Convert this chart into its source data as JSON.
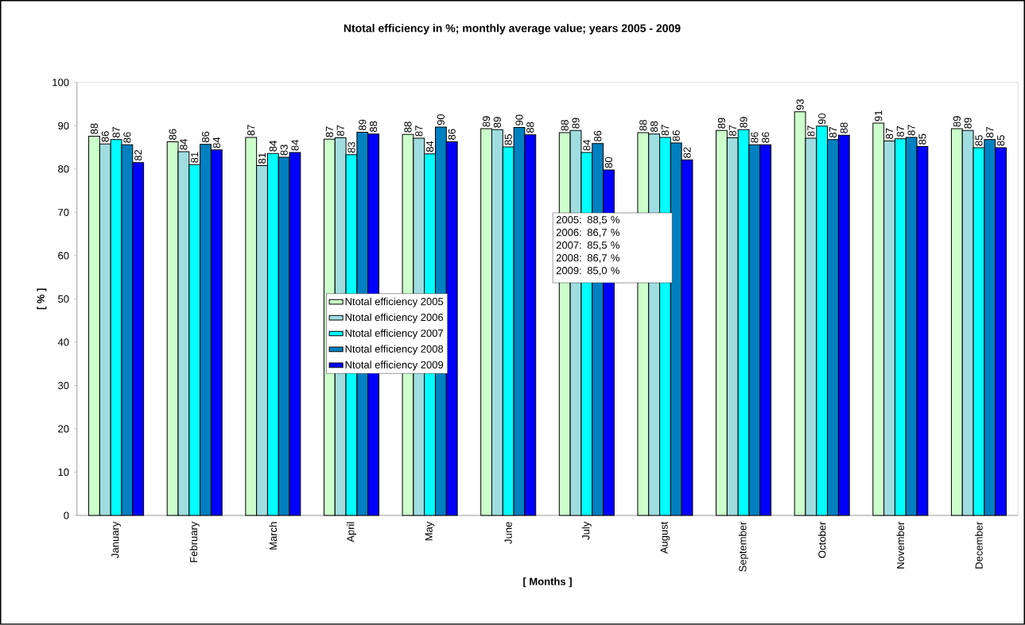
{
  "chart_data": {
    "type": "bar",
    "title": "Ntotal efficiency in %; monthly average value; years 2005 - 2009",
    "xlabel": "[ Months ]",
    "ylabel": "[ % ]",
    "categories": [
      "January",
      "February",
      "March",
      "April",
      "May",
      "June",
      "July",
      "August",
      "September",
      "October",
      "November",
      "December"
    ],
    "ylim": [
      0,
      100
    ],
    "yticks": [
      0,
      10,
      20,
      30,
      40,
      50,
      60,
      70,
      80,
      90,
      100
    ],
    "legend": "center",
    "series": [
      {
        "name": "Ntotal efficiency 2005",
        "color": "#ccffcc",
        "values": [
          87.6,
          86.3,
          87.3,
          86.9,
          88.0,
          89.3,
          88.4,
          88.4,
          88.9,
          93.2,
          90.6,
          89.3
        ],
        "value_labels": [
          "88",
          "86",
          "87",
          "87",
          "88",
          "89",
          "88",
          "88",
          "89",
          "93",
          "91",
          "89"
        ]
      },
      {
        "name": "Ntotal efficiency 2006",
        "color": "#a0dde0",
        "values": [
          85.8,
          84.0,
          80.8,
          87.2,
          87.1,
          89.1,
          88.9,
          88.1,
          87.2,
          87.1,
          86.5,
          88.9
        ],
        "value_labels": [
          "86",
          "84",
          "81",
          "87",
          "87",
          "89",
          "89",
          "88",
          "87",
          "87",
          "87",
          "89"
        ]
      },
      {
        "name": "Ntotal efficiency 2007",
        "color": "#00ffff",
        "values": [
          86.8,
          81.0,
          83.6,
          83.3,
          83.5,
          85.1,
          83.8,
          87.3,
          89.1,
          89.9,
          87.0,
          84.9
        ],
        "value_labels": [
          "87",
          "81",
          "84",
          "83",
          "84",
          "85",
          "84",
          "87",
          "89",
          "90",
          "87",
          "85"
        ]
      },
      {
        "name": "Ntotal efficiency 2008",
        "color": "#0080c0",
        "values": [
          85.6,
          85.7,
          82.7,
          88.5,
          89.7,
          89.6,
          85.9,
          86.0,
          85.6,
          86.8,
          87.3,
          86.8
        ],
        "value_labels": [
          "86",
          "86",
          "83",
          "89",
          "90",
          "90",
          "86",
          "86",
          "86",
          "87",
          "87",
          "87"
        ]
      },
      {
        "name": "Ntotal efficiency 2009",
        "color": "#0000ff",
        "values": [
          81.5,
          84.4,
          83.8,
          88.1,
          86.3,
          87.9,
          79.8,
          82.1,
          85.6,
          87.8,
          85.2,
          84.9
        ],
        "value_labels": [
          "82",
          "84",
          "84",
          "88",
          "86",
          "88",
          "80",
          "82",
          "86",
          "88",
          "85",
          "85"
        ]
      }
    ],
    "annotations": [
      "2005: 88,5 %",
      "2006: 86,7 %",
      "2007: 85,5 %",
      "2008: 86,7 %",
      "2009: 85,0 %"
    ]
  }
}
